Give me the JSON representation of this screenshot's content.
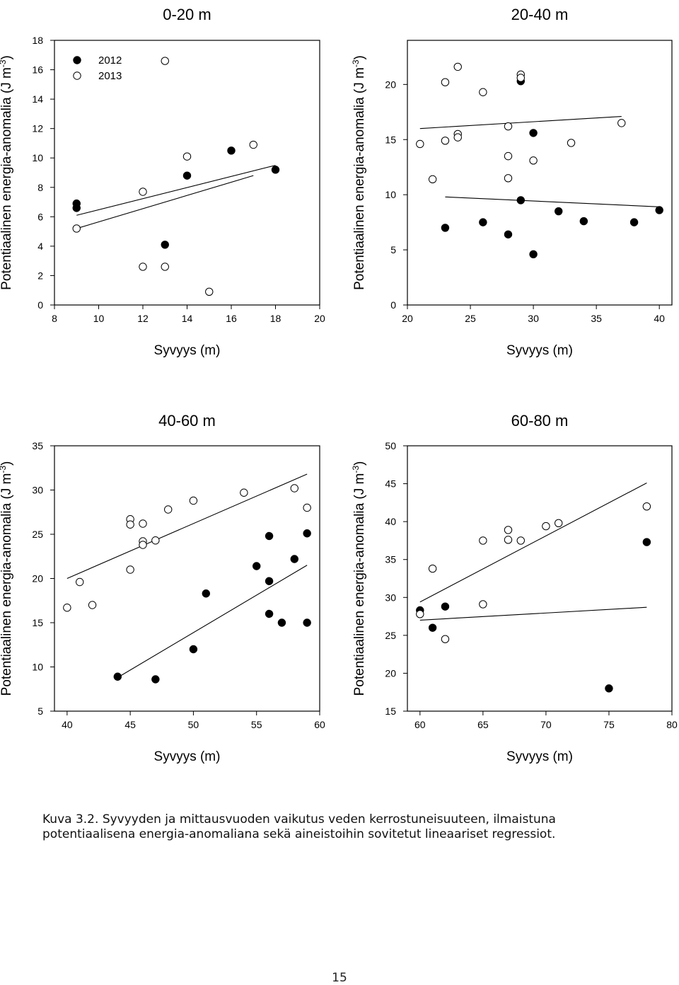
{
  "chart_data": [
    {
      "type": "scatter",
      "title": "0-20 m",
      "xlabel": "Syvyys (m)",
      "ylabel": "Potentiaalinen energia-anomalia (J m-3)",
      "xlim": [
        8,
        20
      ],
      "ylim": [
        0,
        18
      ],
      "xticks": [
        8,
        10,
        12,
        14,
        16,
        18,
        20
      ],
      "yticks": [
        0,
        2,
        4,
        6,
        8,
        10,
        12,
        14,
        16,
        18
      ],
      "legend": {
        "placement": "top-left",
        "entries": [
          "2012",
          "2013"
        ]
      },
      "series": [
        {
          "name": "2012",
          "marker": "filled",
          "points": [
            [
              9,
              6.9
            ],
            [
              9,
              6.6
            ],
            [
              13,
              4.1
            ],
            [
              14,
              8.8
            ],
            [
              16,
              10.5
            ],
            [
              18,
              9.2
            ]
          ],
          "fit": [
            [
              9,
              6.1
            ],
            [
              18,
              9.5
            ]
          ]
        },
        {
          "name": "2013",
          "marker": "open",
          "points": [
            [
              9,
              5.2
            ],
            [
              12,
              7.7
            ],
            [
              12,
              2.6
            ],
            [
              13,
              16.6
            ],
            [
              13,
              2.6
            ],
            [
              14,
              10.1
            ],
            [
              15,
              0.9
            ],
            [
              17,
              10.9
            ]
          ],
          "fit": [
            [
              9,
              5.2
            ],
            [
              17,
              8.8
            ]
          ]
        }
      ]
    },
    {
      "type": "scatter",
      "title": "20-40 m",
      "xlabel": "Syvyys (m)",
      "ylabel": "Potentiaalinen energia-anomalia (J m-3)",
      "xlim": [
        20,
        41
      ],
      "ylim": [
        0,
        24
      ],
      "xticks": [
        20,
        25,
        30,
        35,
        40
      ],
      "yticks": [
        0,
        5,
        10,
        15,
        20
      ],
      "series": [
        {
          "name": "2012",
          "marker": "filled",
          "points": [
            [
              23,
              7.0
            ],
            [
              26,
              7.5
            ],
            [
              28,
              6.4
            ],
            [
              29,
              20.3
            ],
            [
              29,
              9.5
            ],
            [
              30,
              15.6
            ],
            [
              30,
              4.6
            ],
            [
              32,
              8.5
            ],
            [
              34,
              7.6
            ],
            [
              38,
              7.5
            ],
            [
              40,
              8.6
            ]
          ],
          "fit": [
            [
              23,
              9.8
            ],
            [
              40,
              8.9
            ]
          ]
        },
        {
          "name": "2013",
          "marker": "open",
          "points": [
            [
              21,
              14.6
            ],
            [
              22,
              11.4
            ],
            [
              23,
              20.2
            ],
            [
              23,
              14.9
            ],
            [
              24,
              21.6
            ],
            [
              24,
              15.5
            ],
            [
              24,
              15.2
            ],
            [
              26,
              19.3
            ],
            [
              28,
              16.2
            ],
            [
              28,
              13.5
            ],
            [
              28,
              11.5
            ],
            [
              29,
              20.9
            ],
            [
              29,
              20.6
            ],
            [
              30,
              13.1
            ],
            [
              33,
              14.7
            ],
            [
              37,
              16.5
            ]
          ],
          "fit": [
            [
              21,
              16.0
            ],
            [
              37,
              17.1
            ]
          ]
        }
      ]
    },
    {
      "type": "scatter",
      "title": "40-60 m",
      "xlabel": "Syvyys (m)",
      "ylabel": "Potentiaalinen energia-anomalia (J m-3)",
      "xlim": [
        39,
        60
      ],
      "ylim": [
        5,
        35
      ],
      "xticks": [
        40,
        45,
        50,
        55,
        60
      ],
      "yticks": [
        5,
        10,
        15,
        20,
        25,
        30,
        35
      ],
      "series": [
        {
          "name": "2012",
          "marker": "filled",
          "points": [
            [
              44,
              8.9
            ],
            [
              47,
              8.6
            ],
            [
              50,
              12.0
            ],
            [
              51,
              18.3
            ],
            [
              55,
              21.4
            ],
            [
              56,
              24.8
            ],
            [
              56,
              19.7
            ],
            [
              56,
              16.0
            ],
            [
              57,
              15.0
            ],
            [
              58,
              22.2
            ],
            [
              59,
              25.1
            ],
            [
              59,
              15.0
            ]
          ],
          "fit": [
            [
              44,
              8.8
            ],
            [
              59,
              21.5
            ]
          ]
        },
        {
          "name": "2013",
          "marker": "open",
          "points": [
            [
              40,
              16.7
            ],
            [
              41,
              19.6
            ],
            [
              42,
              17.0
            ],
            [
              45,
              26.7
            ],
            [
              45,
              26.1
            ],
            [
              45,
              21.0
            ],
            [
              46,
              26.2
            ],
            [
              46,
              24.2
            ],
            [
              46,
              23.8
            ],
            [
              47,
              24.3
            ],
            [
              48,
              27.8
            ],
            [
              50,
              28.8
            ],
            [
              54,
              29.7
            ],
            [
              58,
              30.2
            ],
            [
              59,
              28.0
            ]
          ],
          "fit": [
            [
              40,
              20.0
            ],
            [
              59,
              31.8
            ]
          ]
        }
      ]
    },
    {
      "type": "scatter",
      "title": "60-80 m",
      "xlabel": "Syvyys (m)",
      "ylabel": "Potentiaalinen energia-anomalia (J m-3)",
      "xlim": [
        59,
        80
      ],
      "ylim": [
        15,
        50
      ],
      "xticks": [
        60,
        65,
        70,
        75,
        80
      ],
      "yticks": [
        15,
        20,
        25,
        30,
        35,
        40,
        45,
        50
      ],
      "series": [
        {
          "name": "2012",
          "marker": "filled",
          "points": [
            [
              60,
              28.3
            ],
            [
              61,
              26.0
            ],
            [
              62,
              28.8
            ],
            [
              75,
              18.0
            ],
            [
              78,
              37.3
            ]
          ],
          "fit": [
            [
              60,
              27.0
            ],
            [
              78,
              28.7
            ]
          ]
        },
        {
          "name": "2013",
          "marker": "open",
          "points": [
            [
              60,
              27.8
            ],
            [
              61,
              33.8
            ],
            [
              62,
              24.5
            ],
            [
              65,
              37.5
            ],
            [
              65,
              29.1
            ],
            [
              67,
              38.9
            ],
            [
              67,
              37.6
            ],
            [
              68,
              37.5
            ],
            [
              70,
              39.4
            ],
            [
              71,
              39.8
            ],
            [
              78,
              42.0
            ]
          ],
          "fit": [
            [
              60,
              29.4
            ],
            [
              78,
              45.1
            ]
          ]
        }
      ]
    }
  ],
  "caption": {
    "label": "Kuva 3.2.",
    "text": "Syvyyden ja mittausvuoden vaikutus veden kerrostuneisuuteen, ilmaistuna potentiaalisena energia-anomaliana sekä aineistoihin sovitetut lineaariset regressiot."
  },
  "page_number": "15"
}
